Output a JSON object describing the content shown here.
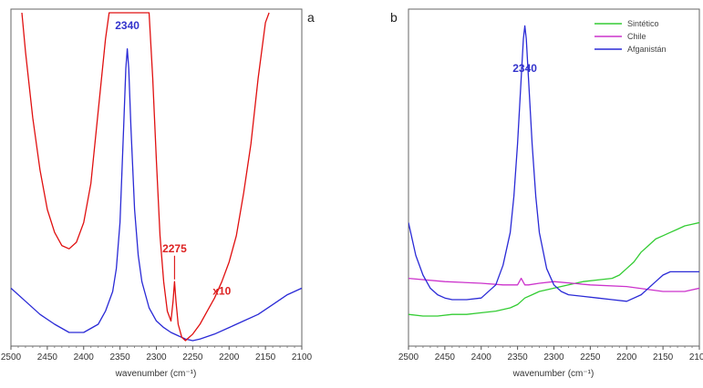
{
  "chart_data": [
    {
      "type": "line",
      "panel_label": "a",
      "xlabel": "wavenumber (cm⁻¹)",
      "ylabel": "",
      "xlim": [
        2500,
        2100
      ],
      "ylim": [
        0,
        100
      ],
      "x_ticks": [
        2500,
        2450,
        2400,
        2350,
        2300,
        2250,
        2200,
        2150,
        2100
      ],
      "grid": false,
      "annotations": [
        {
          "text": "2340",
          "x": 2340,
          "y": 95,
          "color": "#3333cc"
        },
        {
          "text": "2275",
          "x": 2275,
          "y": 27,
          "color": "#dd2222"
        },
        {
          "text": "x10",
          "x": 2210,
          "y": 14,
          "color": "#dd2222"
        }
      ],
      "series": [
        {
          "color": "#2a2ad6",
          "x": [
            2500,
            2480,
            2460,
            2440,
            2420,
            2400,
            2380,
            2370,
            2360,
            2355,
            2350,
            2345,
            2342,
            2340,
            2338,
            2335,
            2330,
            2325,
            2320,
            2310,
            2300,
            2290,
            2280,
            2270,
            2260,
            2250,
            2240,
            2220,
            2200,
            2180,
            2160,
            2140,
            2120,
            2100
          ],
          "y": [
            16,
            12,
            8,
            5,
            2.5,
            2.5,
            5,
            9,
            15,
            22,
            36,
            65,
            83,
            89,
            83,
            65,
            40,
            26,
            18,
            10,
            6,
            4,
            2.5,
            1.5,
            0.5,
            0,
            0.5,
            2,
            4,
            6,
            8,
            11,
            14,
            16
          ]
        },
        {
          "color": "#e01010",
          "x": [
            2485,
            2480,
            2470,
            2460,
            2450,
            2440,
            2430,
            2420,
            2410,
            2400,
            2390,
            2380,
            2370,
            2365,
            2362,
            2310,
            2305,
            2300,
            2295,
            2290,
            2285,
            2280,
            2277,
            2275,
            2273,
            2270,
            2265,
            2260,
            2255,
            2250,
            2240,
            2230,
            2220,
            2210,
            2200,
            2190,
            2180,
            2170,
            2160,
            2150,
            2145
          ],
          "y": [
            100,
            88,
            68,
            52,
            40,
            33,
            29,
            28,
            30,
            36,
            48,
            70,
            92,
            100,
            100,
            100,
            80,
            55,
            32,
            18,
            9,
            6,
            12,
            18,
            12,
            5,
            1,
            0,
            1,
            2,
            5,
            9,
            13,
            18,
            24,
            32,
            45,
            60,
            80,
            97,
            100
          ]
        }
      ]
    },
    {
      "type": "line",
      "panel_label": "b",
      "xlabel": "wavenumber (cm⁻¹)",
      "ylabel": "",
      "xlim": [
        2500,
        2100
      ],
      "ylim": [
        0,
        100
      ],
      "x_ticks": [
        2500,
        2450,
        2400,
        2350,
        2300,
        2250,
        2200,
        2150,
        2100
      ],
      "grid": false,
      "legend_position": "top-right",
      "annotations": [
        {
          "text": "2340",
          "x": 2340,
          "y": 82,
          "color": "#3333cc"
        }
      ],
      "series": [
        {
          "name": "Sintético",
          "color": "#33cc33",
          "x": [
            2500,
            2480,
            2460,
            2440,
            2420,
            2400,
            2380,
            2360,
            2350,
            2345,
            2340,
            2330,
            2320,
            2300,
            2280,
            2260,
            2240,
            2220,
            2210,
            2200,
            2190,
            2180,
            2170,
            2160,
            2150,
            2140,
            2130,
            2120,
            2110,
            2100
          ],
          "y": [
            8,
            7.5,
            7.5,
            8,
            8,
            8.5,
            9,
            10,
            11,
            12,
            13,
            14,
            15,
            16,
            17,
            18,
            18.5,
            19,
            20,
            22,
            24,
            27,
            29,
            31,
            32,
            33,
            34,
            35,
            35.5,
            36
          ]
        },
        {
          "name": "Chile",
          "color": "#cc33cc",
          "x": [
            2500,
            2450,
            2400,
            2370,
            2350,
            2345,
            2340,
            2335,
            2320,
            2300,
            2250,
            2200,
            2150,
            2120,
            2100
          ],
          "y": [
            19,
            18,
            17.5,
            17,
            17,
            19,
            17,
            17,
            17.5,
            18,
            17,
            16.5,
            15,
            15,
            16
          ]
        },
        {
          "name": "Afganistán",
          "color": "#2a2ad6",
          "x": [
            2500,
            2490,
            2480,
            2470,
            2460,
            2450,
            2440,
            2420,
            2400,
            2380,
            2370,
            2360,
            2355,
            2350,
            2345,
            2342,
            2340,
            2338,
            2335,
            2330,
            2325,
            2320,
            2310,
            2300,
            2290,
            2280,
            2260,
            2240,
            2220,
            2200,
            2180,
            2160,
            2150,
            2140,
            2120,
            2100
          ],
          "y": [
            36,
            26,
            20,
            16,
            14,
            13,
            12.5,
            12.5,
            13,
            17,
            23,
            33,
            44,
            60,
            80,
            92,
            96,
            92,
            80,
            60,
            44,
            33,
            22,
            17,
            15,
            14,
            13.5,
            13,
            12.5,
            12,
            14,
            18,
            20,
            21,
            21,
            21
          ]
        }
      ]
    }
  ]
}
